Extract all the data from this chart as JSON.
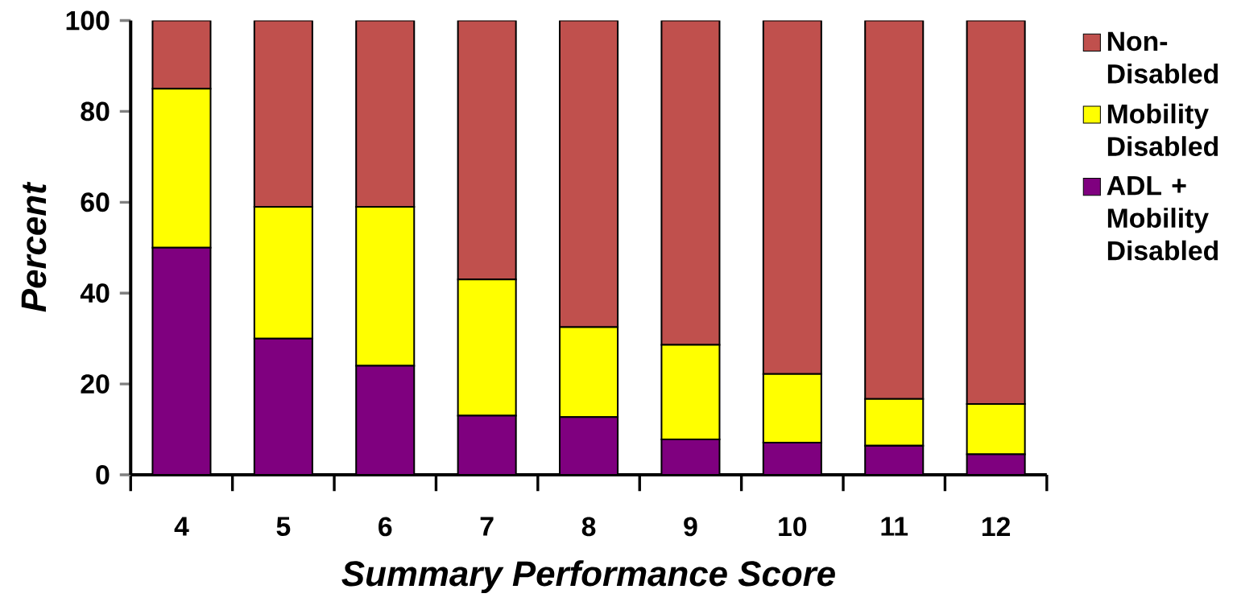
{
  "chart_data": {
    "type": "bar",
    "stacked": true,
    "xlabel": "Summary Performance Score",
    "ylabel": "Percent",
    "categories": [
      "4",
      "5",
      "6",
      "7",
      "8",
      "9",
      "10",
      "11",
      "12"
    ],
    "series": [
      {
        "name": "ADL + Mobility Disabled",
        "color": "#7f007f",
        "values": [
          50,
          30,
          24,
          13,
          12.7,
          7.8,
          7.1,
          6.4,
          4.5
        ]
      },
      {
        "name": "Mobility Disabled",
        "color": "#ffff00",
        "values": [
          35,
          29,
          35,
          30,
          19.8,
          20.8,
          15.1,
          10.3,
          11.1
        ]
      },
      {
        "name": "Non-Disabled",
        "color": "#c0504d",
        "values": [
          15,
          41,
          41,
          57,
          67.5,
          71.4,
          77.8,
          83.3,
          84.4
        ]
      }
    ],
    "ylim": [
      0,
      100
    ],
    "yticks": [
      0,
      20,
      40,
      60,
      80,
      100
    ],
    "legend": "right"
  }
}
